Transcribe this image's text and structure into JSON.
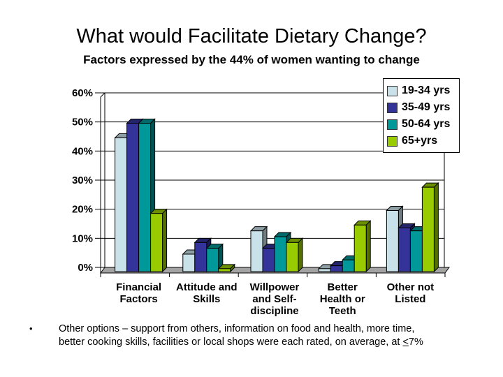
{
  "slide": {
    "title": "What would Facilitate Dietary Change?",
    "subtitle": "Factors expressed by the 44% of women wanting to change"
  },
  "chart_data": {
    "type": "bar",
    "style": "3d-column",
    "title": "",
    "xlabel": "",
    "ylabel": "",
    "categories": [
      "Financial Factors",
      "Attitude and Skills",
      "Willpower and Self-discipline",
      "Better Health or Teeth",
      "Other not Listed"
    ],
    "category_lines": [
      [
        "Financial",
        "Factors"
      ],
      [
        "Attitude and",
        "Skills"
      ],
      [
        "Willpower",
        "and Self-",
        "discipline"
      ],
      [
        "Better",
        "Health or",
        "Teeth"
      ],
      [
        "Other not",
        "Listed"
      ]
    ],
    "series": [
      {
        "name": "19-34 yrs",
        "color": "#c9e2ea",
        "values": [
          46,
          6,
          14,
          1,
          21
        ]
      },
      {
        "name": "35-49 yrs",
        "color": "#333399",
        "values": [
          51,
          10,
          8,
          2,
          15
        ]
      },
      {
        "name": "50-64 yrs",
        "color": "#009898",
        "values": [
          51,
          8,
          12,
          4,
          14
        ]
      },
      {
        "name": "65+yrs",
        "color": "#99cc00",
        "values": [
          20,
          1,
          10,
          16,
          29
        ]
      }
    ],
    "ylim": [
      0,
      60
    ],
    "ytick_step": 10,
    "ytick_labels": [
      "0%",
      "10%",
      "20%",
      "30%",
      "40%",
      "50%",
      "60%"
    ],
    "grid": true,
    "legend_position": "top-right",
    "floor_color": "#a3a3a3"
  },
  "footnote": {
    "marker": "•",
    "line1": "Other options – support from others, information on food and health, more time,",
    "line2_pre": "better cooking skills, facilities or local shops were each rated, on average, at ",
    "line2_underlined": "<",
    "line2_post": "7%"
  }
}
